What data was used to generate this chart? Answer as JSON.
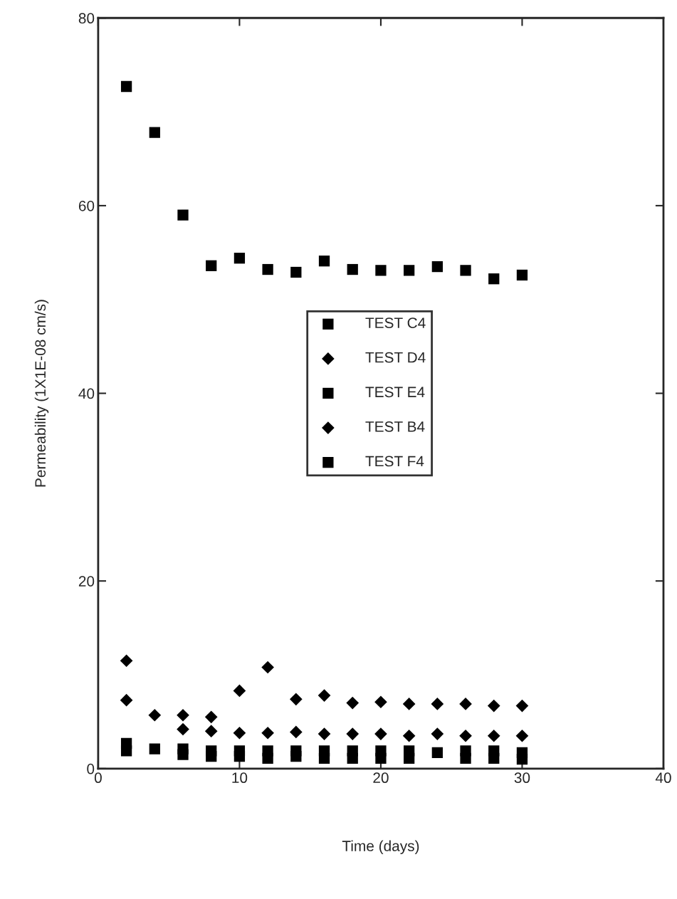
{
  "chart_data": {
    "type": "scatter",
    "xlabel": "Time (days)",
    "ylabel": "Permeability (1X1E-08 cm/s)",
    "x": [
      2,
      4,
      6,
      8,
      10,
      12,
      14,
      16,
      18,
      20,
      22,
      24,
      26,
      28,
      30
    ],
    "xlim": [
      0,
      40
    ],
    "xticks": [
      0,
      10,
      20,
      30,
      40
    ],
    "ylim": [
      0,
      80
    ],
    "yticks": [
      0,
      20,
      40,
      60,
      80
    ],
    "grid": false,
    "legend": "right",
    "series": [
      {
        "name": "TEST C4",
        "color": "#000000",
        "marker": "square",
        "values": [
          1.9,
          null,
          1.5,
          1.3,
          1.3,
          1.1,
          1.3,
          1.1,
          1.1,
          1.1,
          1.1,
          null,
          1.1,
          1.1,
          1.0
        ]
      },
      {
        "name": "TEST D4",
        "color": "#000000",
        "marker": "diamond",
        "values": [
          7.3,
          null,
          4.2,
          4.0,
          3.8,
          3.8,
          3.9,
          3.7,
          3.7,
          3.7,
          3.5,
          3.7,
          3.5,
          3.5,
          3.5
        ]
      },
      {
        "name": "TEST E4",
        "color": "#000000",
        "marker": "square",
        "values": [
          2.7,
          2.1,
          2.1,
          1.9,
          1.9,
          1.9,
          1.9,
          1.9,
          1.9,
          1.9,
          1.9,
          1.7,
          1.9,
          1.9,
          1.7
        ]
      },
      {
        "name": "TEST B4",
        "color": "#000000",
        "marker": "diamond",
        "values": [
          11.5,
          5.7,
          5.7,
          5.5,
          8.3,
          10.8,
          7.4,
          7.8,
          7.0,
          7.1,
          6.9,
          6.9,
          6.9,
          6.7,
          6.7
        ]
      },
      {
        "name": "TEST F4",
        "color": "#000000",
        "marker": "square",
        "values": [
          72.7,
          67.8,
          59.0,
          53.6,
          54.4,
          53.2,
          52.9,
          54.1,
          53.2,
          53.1,
          53.1,
          53.5,
          53.1,
          52.2,
          52.6
        ]
      }
    ]
  }
}
